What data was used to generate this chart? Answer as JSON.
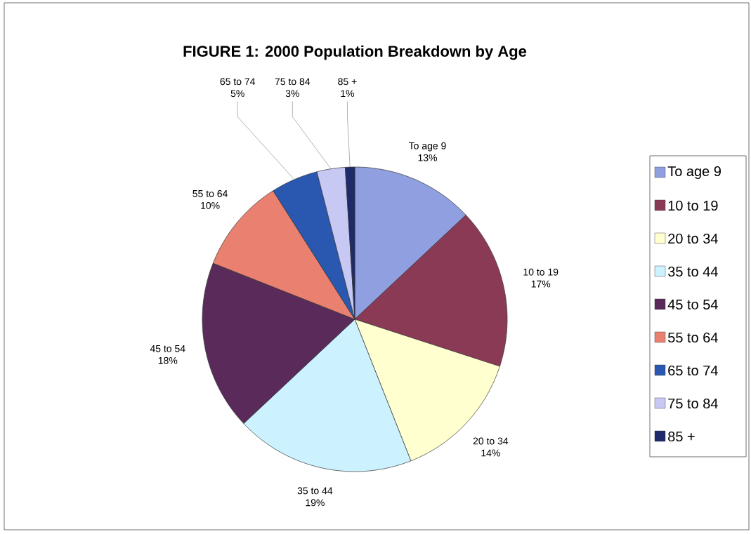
{
  "chart_data": {
    "type": "pie",
    "title": "FIGURE 1:  2000 Population Breakdown by Age",
    "categories": [
      "To age 9",
      "10 to 19",
      "20 to 34",
      "35 to 44",
      "45 to 54",
      "55 to 64",
      "65 to 74",
      "75 to 84",
      "85 +"
    ],
    "values": [
      13,
      17,
      14,
      19,
      18,
      10,
      5,
      3,
      1
    ],
    "value_labels": [
      "13%",
      "17%",
      "14%",
      "19%",
      "18%",
      "10%",
      "5%",
      "3%",
      "1%"
    ],
    "colors": [
      "#8f9fe0",
      "#8b3a55",
      "#ffffd0",
      "#ccf2ff",
      "#5a2a5a",
      "#ea8070",
      "#2a58b0",
      "#c8c8f5",
      "#1f2a6a"
    ],
    "legend": "right"
  }
}
